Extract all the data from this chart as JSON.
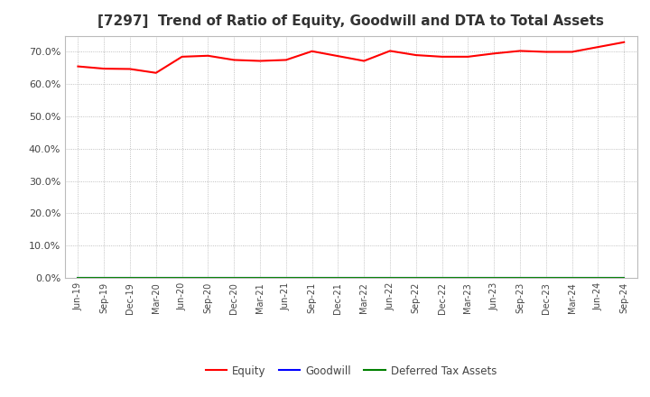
{
  "title": "[7297]  Trend of Ratio of Equity, Goodwill and DTA to Total Assets",
  "x_labels": [
    "Jun-19",
    "Sep-19",
    "Dec-19",
    "Mar-20",
    "Jun-20",
    "Sep-20",
    "Dec-20",
    "Mar-21",
    "Jun-21",
    "Sep-21",
    "Dec-21",
    "Mar-22",
    "Jun-22",
    "Sep-22",
    "Dec-22",
    "Mar-23",
    "Jun-23",
    "Sep-23",
    "Dec-23",
    "Mar-24",
    "Jun-24",
    "Sep-24"
  ],
  "equity": [
    65.5,
    64.8,
    64.7,
    63.5,
    68.5,
    68.8,
    67.5,
    67.2,
    67.5,
    70.2,
    68.7,
    67.2,
    70.3,
    69.0,
    68.5,
    68.5,
    69.5,
    70.3,
    70.0,
    70.0,
    71.5,
    73.0
  ],
  "goodwill": [
    0.0,
    0.0,
    0.0,
    0.0,
    0.0,
    0.0,
    0.0,
    0.0,
    0.0,
    0.0,
    0.0,
    0.0,
    0.0,
    0.0,
    0.0,
    0.0,
    0.0,
    0.0,
    0.0,
    0.0,
    0.0,
    0.0
  ],
  "dta": [
    0.0,
    0.0,
    0.0,
    0.0,
    0.0,
    0.0,
    0.0,
    0.0,
    0.0,
    0.0,
    0.0,
    0.0,
    0.0,
    0.0,
    0.0,
    0.0,
    0.0,
    0.0,
    0.0,
    0.0,
    0.0,
    0.0
  ],
  "equity_color": "#ff0000",
  "goodwill_color": "#0000ff",
  "dta_color": "#008000",
  "ylim": [
    0,
    75
  ],
  "yticks": [
    0,
    10,
    20,
    30,
    40,
    50,
    60,
    70
  ],
  "ytick_labels": [
    "0.0%",
    "10.0%",
    "20.0%",
    "30.0%",
    "40.0%",
    "50.0%",
    "60.0%",
    "70.0%"
  ],
  "background_color": "#ffffff",
  "plot_bg_color": "#ffffff",
  "grid_color": "#999999",
  "title_fontsize": 11,
  "title_color": "#333333",
  "tick_color": "#444444",
  "legend_labels": [
    "Equity",
    "Goodwill",
    "Deferred Tax Assets"
  ]
}
